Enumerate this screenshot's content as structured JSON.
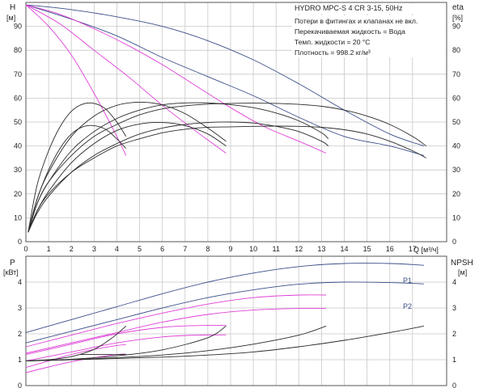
{
  "colors": {
    "curve_dark": "#2a2a2a",
    "curve_pink": "#e040d8",
    "curve_blue": "#3b4f8a",
    "grid": "#c8c8c8",
    "axis": "#555555",
    "text": "#222222"
  },
  "chart_data": [
    {
      "type": "line",
      "title": "HYDRO MPC-S 4 CR 3-15, 50Hz",
      "notes": [
        "Потери в фитингах и клапанах не вкл.",
        "Перекачиваемая жидкость = Вода",
        "Темп. жидкости = 20 °C",
        "Плотность = 998.2 кг/м³"
      ],
      "ylabel_left": "H",
      "ylabel_left_unit": "[м]",
      "ylabel_right": "eta",
      "ylabel_right_unit": "[%]",
      "xlabel": "Q [м³/ч]",
      "xlim": [
        0,
        18.5
      ],
      "ylim": [
        0,
        100
      ],
      "x_ticks": [
        0,
        1,
        2,
        3,
        4,
        5,
        6,
        7,
        8,
        9,
        10,
        11,
        12,
        13,
        14,
        15,
        16,
        17
      ],
      "y_ticks": [
        0,
        10,
        20,
        30,
        40,
        50,
        60,
        70,
        80,
        90
      ],
      "grid": true,
      "series": [
        {
          "color": "blue",
          "x": [
            0,
            2,
            4,
            6,
            8,
            10,
            12,
            14,
            16,
            17.5
          ],
          "y": [
            99,
            97,
            94,
            90,
            84,
            76,
            66,
            55,
            45,
            40
          ]
        },
        {
          "color": "blue",
          "x": [
            0,
            2,
            4,
            6,
            8,
            10,
            12,
            14,
            16,
            17.5
          ],
          "y": [
            99,
            93,
            86,
            77,
            69,
            61,
            52,
            44,
            40,
            36
          ]
        },
        {
          "color": "pink",
          "x": [
            0,
            1.5,
            3,
            4.5,
            6,
            7.5,
            9,
            10.5,
            12,
            13.2
          ],
          "y": [
            99,
            95,
            89,
            82,
            74,
            65,
            56,
            48,
            42,
            37
          ]
        },
        {
          "color": "pink",
          "x": [
            0,
            1.5,
            3,
            4.5,
            6,
            7.5,
            8.8
          ],
          "y": [
            99,
            91,
            80,
            69,
            57,
            46,
            37
          ]
        },
        {
          "color": "pink",
          "x": [
            0,
            1,
            2,
            3,
            4,
            4.4
          ],
          "y": [
            99,
            90,
            78,
            62,
            44,
            36
          ]
        },
        {
          "color": "dark",
          "x": [
            0.1,
            0.5,
            1,
            2,
            3,
            4,
            5,
            6,
            7,
            8,
            9,
            10,
            11,
            12,
            13,
            14,
            15,
            16,
            17,
            17.6
          ],
          "y": [
            4,
            13,
            20,
            29,
            35,
            40,
            43,
            45.5,
            47,
            47.8,
            48,
            48.2,
            48.3,
            48.2,
            47.8,
            46.8,
            45,
            42,
            38,
            35
          ]
        },
        {
          "color": "dark",
          "x": [
            0.1,
            0.5,
            1,
            2,
            3,
            4,
            5,
            6,
            7,
            8,
            9,
            10,
            11,
            12,
            13,
            14,
            15,
            16,
            17,
            17.6
          ],
          "y": [
            4,
            16,
            25,
            36,
            44,
            49,
            53,
            55.5,
            56.8,
            57.5,
            57.8,
            57.9,
            57.8,
            57.4,
            56.6,
            55,
            52.5,
            49,
            44,
            40
          ]
        },
        {
          "color": "dark",
          "x": [
            0.1,
            0.5,
            1,
            2,
            3,
            4,
            5,
            6,
            7,
            8,
            9,
            10,
            11,
            12,
            13,
            13.3
          ],
          "y": [
            4,
            12,
            19,
            29,
            36,
            41,
            45,
            47.5,
            49,
            49.8,
            50,
            49.6,
            48.2,
            46,
            42,
            40
          ]
        },
        {
          "color": "dark",
          "x": [
            0.1,
            0.5,
            1,
            2,
            3,
            4,
            5,
            6,
            7,
            8,
            9,
            10,
            11,
            12,
            13,
            13.3
          ],
          "y": [
            4,
            16,
            25,
            38,
            46,
            51.5,
            55,
            57.2,
            58,
            58,
            57.3,
            56,
            53.8,
            50.5,
            45.5,
            43
          ]
        },
        {
          "color": "dark",
          "x": [
            0.1,
            0.5,
            1,
            2,
            3,
            4,
            5,
            6,
            7,
            8,
            8.8
          ],
          "y": [
            4,
            13,
            21,
            33,
            41,
            46.5,
            49.2,
            49.8,
            48.5,
            45,
            40
          ]
        },
        {
          "color": "dark",
          "x": [
            0.1,
            0.5,
            1,
            2,
            3,
            4,
            5,
            6,
            7,
            8,
            8.8
          ],
          "y": [
            4,
            18,
            29,
            44,
            52.5,
            57,
            58.3,
            57.2,
            53.5,
            47.5,
            42
          ]
        },
        {
          "color": "dark",
          "x": [
            0.1,
            0.5,
            1,
            1.5,
            2,
            2.5,
            3,
            3.5,
            4,
            4.4
          ],
          "y": [
            4,
            18,
            30,
            39,
            45,
            48,
            48.5,
            47,
            43,
            39
          ]
        },
        {
          "color": "dark",
          "x": [
            0.1,
            0.5,
            1,
            1.5,
            2,
            2.5,
            3,
            3.5,
            4,
            4.4
          ],
          "y": [
            4,
            24,
            38,
            48,
            54.5,
            57.5,
            57.8,
            55.5,
            50,
            44
          ]
        }
      ]
    },
    {
      "type": "line",
      "ylabel_left": "P",
      "ylabel_left_unit": "[кВт]",
      "ylabel_right": "NPSH",
      "ylabel_right_unit": "[м]",
      "xlim": [
        0,
        18.5
      ],
      "ylim": [
        0,
        5
      ],
      "y_ticks": [
        0,
        1,
        2,
        3,
        4
      ],
      "grid": true,
      "legend_labels": [
        "P1",
        "P2"
      ],
      "series": [
        {
          "name": "P1",
          "color": "blue",
          "x": [
            0,
            2,
            4,
            6,
            8,
            10,
            12,
            14,
            16,
            17.5
          ],
          "y": [
            2.05,
            2.55,
            3.05,
            3.55,
            4.0,
            4.35,
            4.6,
            4.72,
            4.72,
            4.65
          ]
        },
        {
          "name": "P2",
          "color": "blue",
          "x": [
            0,
            2,
            4,
            6,
            8,
            10,
            12,
            14,
            16,
            17.5
          ],
          "y": [
            1.65,
            2.1,
            2.55,
            3.0,
            3.4,
            3.7,
            3.92,
            4.0,
            3.98,
            3.93
          ]
        },
        {
          "color": "pink",
          "x": [
            0,
            2,
            4,
            6,
            8,
            10,
            12,
            13.2
          ],
          "y": [
            1.5,
            1.95,
            2.4,
            2.8,
            3.15,
            3.4,
            3.5,
            3.5
          ]
        },
        {
          "color": "pink",
          "x": [
            0,
            2,
            4,
            6,
            8,
            10,
            12,
            13.2
          ],
          "y": [
            1.25,
            1.65,
            2.05,
            2.45,
            2.75,
            2.92,
            2.98,
            2.98
          ]
        },
        {
          "color": "pink",
          "x": [
            0,
            2,
            4,
            6,
            7.5,
            8.8
          ],
          "y": [
            1.2,
            1.6,
            2.0,
            2.25,
            2.32,
            2.33
          ]
        },
        {
          "color": "pink",
          "x": [
            0,
            2,
            4,
            6,
            7.5,
            8.8
          ],
          "y": [
            0.95,
            1.3,
            1.65,
            1.88,
            1.95,
            1.96
          ]
        },
        {
          "color": "pink",
          "x": [
            0,
            1,
            2,
            3,
            4,
            4.4
          ],
          "y": [
            0.7,
            0.95,
            1.2,
            1.4,
            1.55,
            1.58
          ]
        },
        {
          "color": "pink",
          "x": [
            0,
            1,
            2,
            3,
            4,
            4.4
          ],
          "y": [
            0.5,
            0.72,
            0.92,
            1.08,
            1.2,
            1.22
          ]
        },
        {
          "color": "dark",
          "x": [
            0,
            2,
            4,
            6,
            8,
            10,
            12,
            14,
            16,
            17.5
          ],
          "y": [
            0.95,
            1.0,
            1.05,
            1.1,
            1.18,
            1.3,
            1.5,
            1.75,
            2.05,
            2.3
          ]
        },
        {
          "color": "dark",
          "x": [
            0,
            2,
            4,
            6,
            8,
            10,
            12,
            13.2
          ],
          "y": [
            0.95,
            1.0,
            1.08,
            1.18,
            1.35,
            1.6,
            1.95,
            2.3
          ]
        },
        {
          "color": "dark",
          "x": [
            0,
            2,
            4,
            6,
            8,
            8.8
          ],
          "y": [
            0.95,
            1.02,
            1.15,
            1.38,
            1.85,
            2.3
          ]
        },
        {
          "color": "dark",
          "x": [
            0,
            1,
            2,
            3,
            3.8,
            4.4
          ],
          "y": [
            0.95,
            1.0,
            1.12,
            1.4,
            1.85,
            2.3
          ]
        },
        {
          "color": "dark",
          "x": [
            2.4,
            3,
            4,
            4.4
          ],
          "y": [
            1.2,
            1.2,
            1.2,
            1.2
          ]
        }
      ]
    }
  ]
}
